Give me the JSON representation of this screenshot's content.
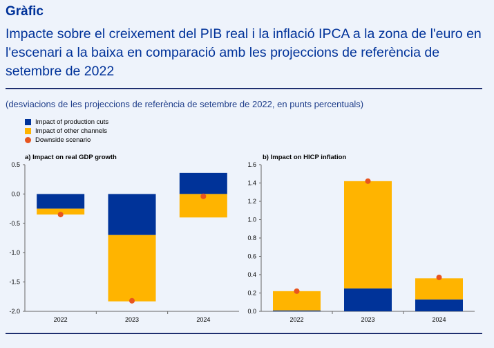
{
  "header": {
    "kicker": "Gràfic",
    "title": "Impacte sobre el creixement del PIB real i la inflació IPCA a la zona de l'euro en l'escenari a la baixa en comparació amb les projeccions de referència de setembre de 2022",
    "subtitle": "(desviacions de les projeccions de referència de setembre de 2022, en punts percentuals)"
  },
  "colors": {
    "production": "#003399",
    "other": "#FFB400",
    "scenario": "#E8551E",
    "axis": "#666666"
  },
  "legend": {
    "production": "Impact of production cuts",
    "other": "Impact of other channels",
    "scenario": "Downside scenario"
  },
  "chart_data": [
    {
      "type": "bar",
      "stacked": true,
      "title": "a) Impact on real GDP growth",
      "categories": [
        "2022",
        "2023",
        "2024"
      ],
      "series": [
        {
          "name": "Impact of production cuts",
          "values": [
            -0.25,
            -0.7,
            0.36
          ]
        },
        {
          "name": "Impact of other channels",
          "values": [
            -0.1,
            -1.13,
            -0.4
          ]
        }
      ],
      "scenario": {
        "name": "Downside scenario",
        "values": [
          -0.35,
          -1.82,
          -0.04
        ]
      },
      "ylim": [
        -2.0,
        0.5
      ],
      "yticks": [
        0.5,
        0.0,
        -0.5,
        -1.0,
        -1.5,
        -2.0
      ],
      "ytick_labels": [
        "0.5",
        "0.0",
        "-0.5",
        "-1.0",
        "-1.5",
        "-2.0"
      ],
      "grid": false
    },
    {
      "type": "bar",
      "stacked": true,
      "title": "b) Impact on HICP inflation",
      "categories": [
        "2022",
        "2023",
        "2024"
      ],
      "series": [
        {
          "name": "Impact of production cuts",
          "values": [
            0.01,
            0.25,
            0.13
          ]
        },
        {
          "name": "Impact of other channels",
          "values": [
            0.21,
            1.17,
            0.23
          ]
        }
      ],
      "scenario": {
        "name": "Downside scenario",
        "values": [
          0.22,
          1.42,
          0.37
        ]
      },
      "ylim": [
        0.0,
        1.6
      ],
      "yticks": [
        0.0,
        0.2,
        0.4,
        0.6,
        0.8,
        1.0,
        1.2,
        1.4,
        1.6
      ],
      "ytick_labels": [
        "0.0",
        "0.2",
        "0.4",
        "0.6",
        "0.8",
        "1.0",
        "1.2",
        "1.4",
        "1.6"
      ],
      "grid": false
    }
  ]
}
